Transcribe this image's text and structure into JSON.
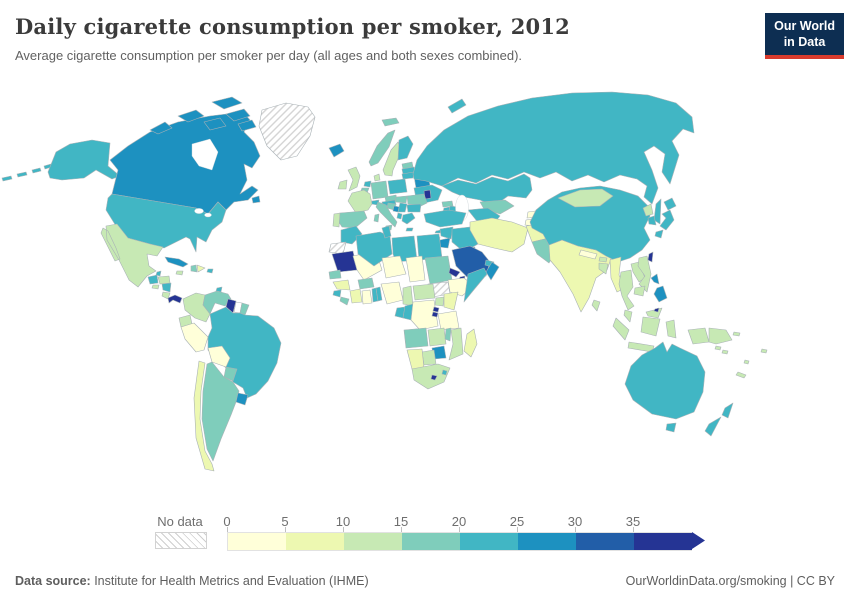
{
  "header": {
    "title": "Daily cigarette consumption per smoker, 2012",
    "subtitle": "Average cigarette consumption per smoker per day (all ages and both sexes combined)."
  },
  "logo": {
    "line1": "Our World",
    "line2": "in Data",
    "bg_color": "#0d2e52",
    "accent_color": "#d93b2d"
  },
  "legend": {
    "no_data_label": "No data",
    "ticks": [
      "0",
      "5",
      "10",
      "15",
      "20",
      "25",
      "30",
      "35"
    ]
  },
  "footer": {
    "source_label": "Data source:",
    "source_text": " Institute for Health Metrics and Evaluation (IHME)",
    "link_text": "OurWorldinData.org/smoking | CC BY"
  },
  "chart_data": {
    "type": "heatmap",
    "subtype": "choropleth-world-map",
    "title": "Daily cigarette consumption per smoker, 2012",
    "unit": "cigarettes per smoker per day",
    "legend_position": "bottom",
    "bins": {
      "thresholds": [
        0,
        5,
        10,
        15,
        20,
        25,
        30,
        35
      ],
      "colors": [
        "#ffffd9",
        "#edf8b1",
        "#c7e9b4",
        "#7fcdbb",
        "#41b6c4",
        "#1d91c0",
        "#225ea8",
        "#253494"
      ],
      "no_data_pattern": "diagonal-hatch"
    },
    "countries": [
      {
        "name": "United States",
        "value": 22
      },
      {
        "name": "Canada",
        "value": 26
      },
      {
        "name": "Greenland",
        "value": null,
        "status": "no-data"
      },
      {
        "name": "Mexico",
        "value": 12
      },
      {
        "name": "Belize",
        "value": 21
      },
      {
        "name": "Guatemala",
        "value": 21
      },
      {
        "name": "Honduras",
        "value": 12
      },
      {
        "name": "El Salvador",
        "value": 12
      },
      {
        "name": "Nicaragua",
        "value": 21
      },
      {
        "name": "Costa Rica",
        "value": 12
      },
      {
        "name": "Panama",
        "value": 35
      },
      {
        "name": "Cuba",
        "value": 26
      },
      {
        "name": "Jamaica",
        "value": 12
      },
      {
        "name": "Haiti",
        "value": 16
      },
      {
        "name": "Dominican Republic",
        "value": 8
      },
      {
        "name": "Puerto Rico",
        "value": 22
      },
      {
        "name": "Trinidad and Tobago",
        "value": 21
      },
      {
        "name": "Colombia",
        "value": 12
      },
      {
        "name": "Venezuela",
        "value": 17
      },
      {
        "name": "Guyana",
        "value": 36
      },
      {
        "name": "Suriname",
        "value": null,
        "status": "blank"
      },
      {
        "name": "French Guiana",
        "value": 17
      },
      {
        "name": "Ecuador",
        "value": 12
      },
      {
        "name": "Peru",
        "value": 3
      },
      {
        "name": "Brazil",
        "value": 22
      },
      {
        "name": "Bolivia",
        "value": 4
      },
      {
        "name": "Paraguay",
        "value": 17
      },
      {
        "name": "Uruguay",
        "value": 26
      },
      {
        "name": "Argentina",
        "value": 17
      },
      {
        "name": "Chile",
        "value": 8
      },
      {
        "name": "Iceland",
        "value": 26
      },
      {
        "name": "Ireland",
        "value": 12
      },
      {
        "name": "United Kingdom",
        "value": 12
      },
      {
        "name": "Norway",
        "value": 16
      },
      {
        "name": "Sweden",
        "value": 12
      },
      {
        "name": "Finland",
        "value": 21
      },
      {
        "name": "Denmark",
        "value": 12
      },
      {
        "name": "Estonia",
        "value": 17
      },
      {
        "name": "Latvia",
        "value": 21
      },
      {
        "name": "Lithuania",
        "value": 21
      },
      {
        "name": "Netherlands",
        "value": 21
      },
      {
        "name": "Belgium",
        "value": 17
      },
      {
        "name": "Germany",
        "value": 17
      },
      {
        "name": "Poland",
        "value": 21
      },
      {
        "name": "Belarus",
        "value": 26
      },
      {
        "name": "Ukraine",
        "value": 21
      },
      {
        "name": "Moldova",
        "value": 35
      },
      {
        "name": "Romania",
        "value": 17
      },
      {
        "name": "Hungary",
        "value": 17
      },
      {
        "name": "Czechia",
        "value": 17
      },
      {
        "name": "Austria",
        "value": 21
      },
      {
        "name": "Switzerland",
        "value": 21
      },
      {
        "name": "France",
        "value": 13
      },
      {
        "name": "Spain",
        "value": 17
      },
      {
        "name": "Portugal",
        "value": 13
      },
      {
        "name": "Italy",
        "value": 17
      },
      {
        "name": "Croatia",
        "value": 17
      },
      {
        "name": "Bosnia and Herzegovina",
        "value": 26
      },
      {
        "name": "Serbia",
        "value": 21
      },
      {
        "name": "Albania",
        "value": 21
      },
      {
        "name": "Bulgaria",
        "value": 21
      },
      {
        "name": "Greece",
        "value": 23
      },
      {
        "name": "Russia",
        "value": 22
      },
      {
        "name": "Kazakhstan",
        "value": 22
      },
      {
        "name": "Uzbekistan",
        "value": 17
      },
      {
        "name": "Turkmenistan",
        "value": 21
      },
      {
        "name": "Kyrgyzstan",
        "value": 4
      },
      {
        "name": "Tajikistan",
        "value": 3
      },
      {
        "name": "Georgia",
        "value": 17
      },
      {
        "name": "Armenia",
        "value": 21
      },
      {
        "name": "Azerbaijan",
        "value": 21
      },
      {
        "name": "Turkey",
        "value": 22
      },
      {
        "name": "Cyprus",
        "value": 21
      },
      {
        "name": "Syria",
        "value": 21
      },
      {
        "name": "Israel",
        "value": 21
      },
      {
        "name": "Jordan",
        "value": 26
      },
      {
        "name": "Iraq",
        "value": 21
      },
      {
        "name": "Iran",
        "value": 8
      },
      {
        "name": "Kuwait",
        "value": 27
      },
      {
        "name": "Saudi Arabia",
        "value": 32
      },
      {
        "name": "United Arab Emirates",
        "value": 22
      },
      {
        "name": "Oman",
        "value": 26
      },
      {
        "name": "Yemen",
        "value": 26
      },
      {
        "name": "Morocco",
        "value": 21
      },
      {
        "name": "Western Sahara",
        "value": null,
        "status": "no-data"
      },
      {
        "name": "Mauritania",
        "value": 36
      },
      {
        "name": "Mali",
        "value": 3
      },
      {
        "name": "Senegal",
        "value": 16
      },
      {
        "name": "Guinea",
        "value": 7
      },
      {
        "name": "Sierra Leone",
        "value": 21
      },
      {
        "name": "Liberia",
        "value": 16
      },
      {
        "name": "Cote d'Ivoire",
        "value": 7
      },
      {
        "name": "Burkina Faso",
        "value": 16
      },
      {
        "name": "Ghana",
        "value": 3
      },
      {
        "name": "Togo",
        "value": 21
      },
      {
        "name": "Benin",
        "value": 21
      },
      {
        "name": "Algeria",
        "value": 22
      },
      {
        "name": "Tunisia",
        "value": 22
      },
      {
        "name": "Libya",
        "value": 23
      },
      {
        "name": "Egypt",
        "value": 22
      },
      {
        "name": "Niger",
        "value": 3
      },
      {
        "name": "Chad",
        "value": 3
      },
      {
        "name": "Sudan",
        "value": 16
      },
      {
        "name": "South Sudan",
        "value": null,
        "status": "no-data"
      },
      {
        "name": "Eritrea",
        "value": 36
      },
      {
        "name": "Djibouti",
        "value": 35
      },
      {
        "name": "Ethiopia",
        "value": 4
      },
      {
        "name": "Somalia",
        "value": 21
      },
      {
        "name": "Nigeria",
        "value": 4
      },
      {
        "name": "Cameroon",
        "value": 12
      },
      {
        "name": "Central African Republic",
        "value": 12
      },
      {
        "name": "Gabon",
        "value": 22
      },
      {
        "name": "Congo",
        "value": 21
      },
      {
        "name": "Democratic Republic of Congo",
        "value": 3
      },
      {
        "name": "Uganda",
        "value": 12
      },
      {
        "name": "Kenya",
        "value": 7
      },
      {
        "name": "Rwanda",
        "value": 36
      },
      {
        "name": "Burundi",
        "value": 35
      },
      {
        "name": "Tanzania",
        "value": 4
      },
      {
        "name": "Angola",
        "value": 17
      },
      {
        "name": "Zambia",
        "value": 12
      },
      {
        "name": "Malawi",
        "value": 16
      },
      {
        "name": "Mozambique",
        "value": 12
      },
      {
        "name": "Zimbabwe",
        "value": 26
      },
      {
        "name": "Botswana",
        "value": 12
      },
      {
        "name": "Namibia",
        "value": 8
      },
      {
        "name": "South Africa",
        "value": 12
      },
      {
        "name": "Lesotho",
        "value": 36
      },
      {
        "name": "Eswatini",
        "value": 21
      },
      {
        "name": "Madagascar",
        "value": 8
      },
      {
        "name": "Afghanistan",
        "value": 7
      },
      {
        "name": "Pakistan",
        "value": 16
      },
      {
        "name": "India",
        "value": 7
      },
      {
        "name": "Nepal",
        "value": 2
      },
      {
        "name": "Bhutan",
        "value": 12
      },
      {
        "name": "Bangladesh",
        "value": 12
      },
      {
        "name": "Sri Lanka",
        "value": 12
      },
      {
        "name": "Myanmar",
        "value": 7
      },
      {
        "name": "Thailand",
        "value": 12
      },
      {
        "name": "Laos",
        "value": 12
      },
      {
        "name": "Vietnam",
        "value": 13
      },
      {
        "name": "Cambodia",
        "value": 12
      },
      {
        "name": "Malaysia",
        "value": 13
      },
      {
        "name": "Brunei",
        "value": 36
      },
      {
        "name": "Indonesia",
        "value": 12
      },
      {
        "name": "Papua New Guinea",
        "value": 12
      },
      {
        "name": "Philippines",
        "value": 26
      },
      {
        "name": "Taiwan",
        "value": 36
      },
      {
        "name": "China",
        "value": 22
      },
      {
        "name": "Mongolia",
        "value": 12
      },
      {
        "name": "North Korea",
        "value": 13
      },
      {
        "name": "South Korea",
        "value": 22
      },
      {
        "name": "Japan",
        "value": 22
      },
      {
        "name": "Australia",
        "value": 22
      },
      {
        "name": "New Zealand",
        "value": 21
      },
      {
        "name": "Fiji",
        "value": 12
      },
      {
        "name": "Vanuatu",
        "value": 12
      },
      {
        "name": "New Caledonia",
        "value": 12
      },
      {
        "name": "Solomon Islands",
        "value": 12
      }
    ]
  }
}
